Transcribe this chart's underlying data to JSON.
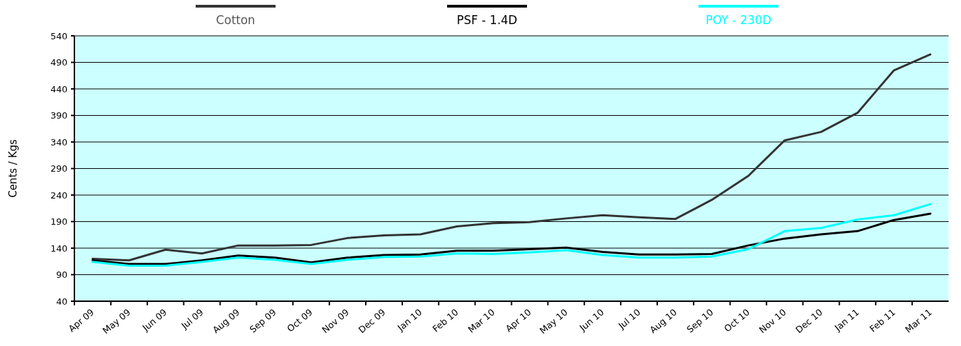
{
  "chart_data": {
    "type": "line",
    "ylabel": "Cents / Kgs",
    "categories": [
      "Apr 09",
      "May 09",
      "Jun 09",
      "Jul 09",
      "Aug 09",
      "Sep 09",
      "Oct 09",
      "Nov 09",
      "Dec 09",
      "Jan 10",
      "Feb 10",
      "Mar 10",
      "Apr 10",
      "May 10",
      "Jun 10",
      "Jul 10",
      "Aug 10",
      "Sep 10",
      "Oct 10",
      "Nov 10",
      "Dec 10",
      "Jan  11",
      "Feb 11",
      "Mar 11"
    ],
    "series": [
      {
        "name": "Cotton",
        "color": "#333333",
        "values": [
          120,
          117,
          137,
          130,
          145,
          145,
          146,
          159,
          164,
          166,
          181,
          187,
          189,
          196,
          202,
          198,
          195,
          231,
          276,
          343,
          359,
          395,
          475,
          505
        ]
      },
      {
        "name": "PSF - 1.4D",
        "color": "#000000",
        "values": [
          117,
          110,
          110,
          117,
          126,
          122,
          113,
          122,
          127,
          128,
          135,
          135,
          138,
          141,
          133,
          128,
          128,
          129,
          145,
          158,
          166,
          172,
          193,
          205
        ]
      },
      {
        "name": "POY - 230D",
        "color": "#00ffff",
        "values": [
          114,
          107,
          107,
          114,
          122,
          118,
          110,
          118,
          123,
          124,
          130,
          129,
          132,
          136,
          127,
          122,
          122,
          124,
          138,
          172,
          178,
          194,
          202,
          223
        ]
      }
    ],
    "ylim": [
      40,
      540
    ],
    "yticks": [
      40,
      90,
      140,
      190,
      240,
      290,
      340,
      390,
      440,
      490,
      540
    ],
    "grid": "y",
    "legend": "top",
    "line_style": "solid",
    "marker": "none"
  }
}
